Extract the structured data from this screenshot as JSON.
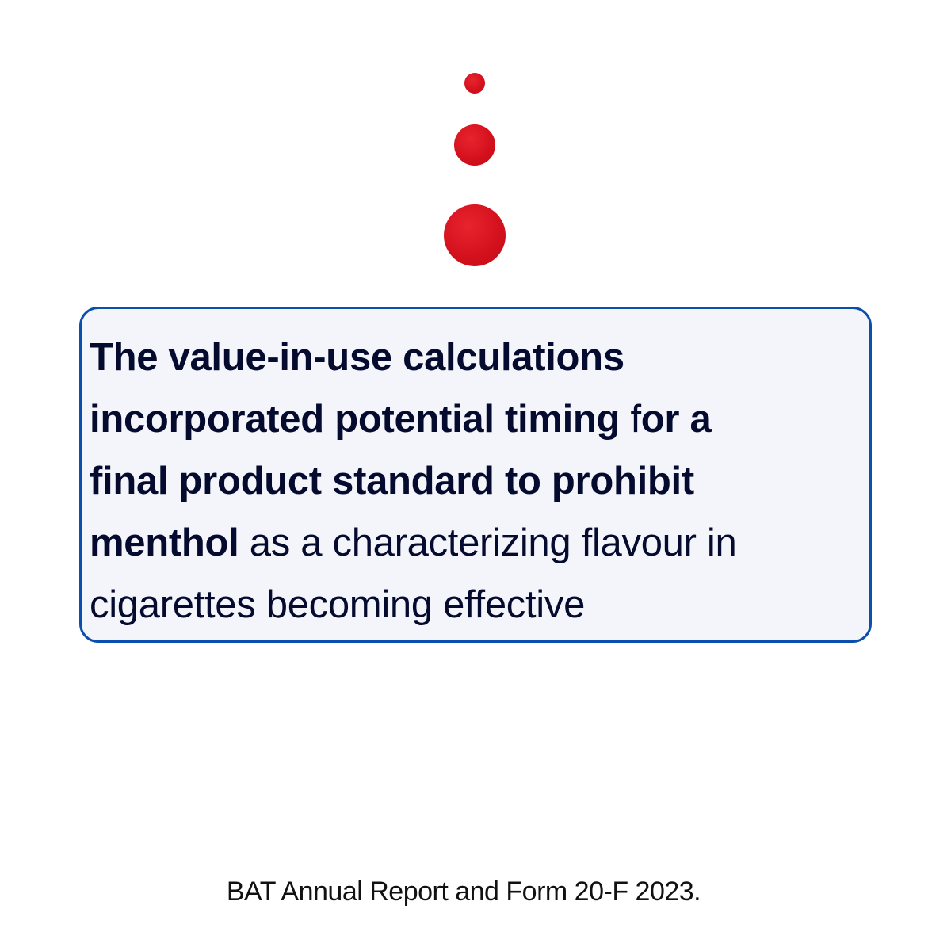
{
  "decoration": {
    "dots_color": "#d7141f",
    "icon": "red-dots-icon"
  },
  "quote": {
    "line1_bold": "The value-in-use calculations",
    "line2_bold": "incorporated potential timing ",
    "line2_regular": "f",
    "line2_bold_end": "or a",
    "line3_bold": "final product standard to prohibit",
    "line4_bold": "menthol",
    "line4_regular": " as a characterizing flavour in",
    "line5_regular": "cigarettes becoming effective",
    "border_color": "#0a4fad",
    "background_color": "#f4f5fa",
    "text_color": "#050b2e"
  },
  "footer": {
    "source": "BAT Annual Report and Form 20-F 2023."
  }
}
